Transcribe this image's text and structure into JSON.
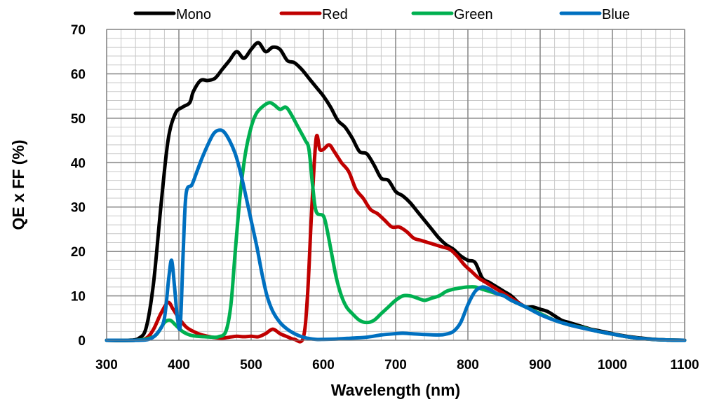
{
  "chart_data": {
    "type": "line",
    "title": "",
    "xlabel": "Wavelength (nm)",
    "ylabel": "QE x FF (%)",
    "xlim": [
      300,
      1100
    ],
    "ylim": [
      0,
      70
    ],
    "xticks": [
      300,
      400,
      500,
      600,
      700,
      800,
      900,
      1000,
      1100
    ],
    "yticks": [
      0,
      10,
      20,
      30,
      40,
      50,
      60,
      70
    ],
    "grid": true,
    "legend_position": "top",
    "series": [
      {
        "name": "Mono",
        "color": "#000000",
        "points": [
          [
            300,
            0
          ],
          [
            330,
            0
          ],
          [
            345,
            0.5
          ],
          [
            355,
            3
          ],
          [
            365,
            13
          ],
          [
            375,
            30
          ],
          [
            385,
            45
          ],
          [
            395,
            51
          ],
          [
            405,
            52.5
          ],
          [
            415,
            53.5
          ],
          [
            420,
            56
          ],
          [
            430,
            58.5
          ],
          [
            440,
            58.5
          ],
          [
            450,
            59
          ],
          [
            460,
            61
          ],
          [
            470,
            63
          ],
          [
            480,
            65
          ],
          [
            490,
            63.5
          ],
          [
            500,
            65.5
          ],
          [
            510,
            67
          ],
          [
            520,
            65
          ],
          [
            530,
            66
          ],
          [
            540,
            65.5
          ],
          [
            550,
            63
          ],
          [
            560,
            62.5
          ],
          [
            570,
            61
          ],
          [
            580,
            59
          ],
          [
            590,
            57
          ],
          [
            600,
            55
          ],
          [
            610,
            52.5
          ],
          [
            620,
            49.5
          ],
          [
            630,
            48
          ],
          [
            640,
            45.5
          ],
          [
            650,
            42.5
          ],
          [
            660,
            42
          ],
          [
            670,
            39.5
          ],
          [
            680,
            36.5
          ],
          [
            690,
            36
          ],
          [
            700,
            33.5
          ],
          [
            710,
            32.5
          ],
          [
            720,
            31
          ],
          [
            730,
            29
          ],
          [
            740,
            27
          ],
          [
            750,
            25
          ],
          [
            760,
            23
          ],
          [
            770,
            21.5
          ],
          [
            780,
            20.5
          ],
          [
            790,
            19
          ],
          [
            800,
            18
          ],
          [
            810,
            17.5
          ],
          [
            820,
            14
          ],
          [
            830,
            13
          ],
          [
            840,
            12
          ],
          [
            850,
            11
          ],
          [
            860,
            10
          ],
          [
            870,
            8.5
          ],
          [
            880,
            7.5
          ],
          [
            890,
            7.5
          ],
          [
            900,
            7
          ],
          [
            910,
            6.5
          ],
          [
            920,
            5.5
          ],
          [
            930,
            4.5
          ],
          [
            940,
            4
          ],
          [
            950,
            3.5
          ],
          [
            960,
            3
          ],
          [
            970,
            2.5
          ],
          [
            980,
            2.2
          ],
          [
            1000,
            1.5
          ],
          [
            1020,
            0.9
          ],
          [
            1040,
            0.5
          ],
          [
            1060,
            0.2
          ],
          [
            1080,
            0.05
          ],
          [
            1100,
            0
          ]
        ]
      },
      {
        "name": "Red",
        "color": "#C00000",
        "points": [
          [
            300,
            0
          ],
          [
            340,
            0
          ],
          [
            355,
            0.5
          ],
          [
            365,
            2.5
          ],
          [
            375,
            6
          ],
          [
            385,
            8.5
          ],
          [
            392,
            7
          ],
          [
            400,
            5
          ],
          [
            410,
            3
          ],
          [
            420,
            2
          ],
          [
            430,
            1.3
          ],
          [
            440,
            0.9
          ],
          [
            450,
            0.6
          ],
          [
            460,
            0.5
          ],
          [
            470,
            0.7
          ],
          [
            480,
            0.9
          ],
          [
            490,
            0.8
          ],
          [
            500,
            0.9
          ],
          [
            510,
            0.8
          ],
          [
            520,
            1.5
          ],
          [
            530,
            2.5
          ],
          [
            540,
            1.5
          ],
          [
            550,
            0.8
          ],
          [
            560,
            0.2
          ],
          [
            572,
            0.5
          ],
          [
            578,
            10
          ],
          [
            584,
            30
          ],
          [
            590,
            45.5
          ],
          [
            595,
            43
          ],
          [
            600,
            43
          ],
          [
            608,
            44
          ],
          [
            615,
            42.5
          ],
          [
            625,
            40
          ],
          [
            635,
            38
          ],
          [
            645,
            34
          ],
          [
            655,
            32
          ],
          [
            665,
            29.5
          ],
          [
            675,
            28.5
          ],
          [
            685,
            27
          ],
          [
            695,
            25.5
          ],
          [
            705,
            25.5
          ],
          [
            715,
            24.5
          ],
          [
            725,
            23
          ],
          [
            735,
            22.5
          ],
          [
            745,
            22
          ],
          [
            755,
            21.5
          ],
          [
            765,
            21
          ],
          [
            775,
            20.5
          ],
          [
            785,
            19
          ],
          [
            795,
            17
          ],
          [
            805,
            15.5
          ],
          [
            815,
            14
          ],
          [
            825,
            13
          ],
          [
            835,
            12
          ],
          [
            845,
            11
          ],
          [
            860,
            9.5
          ],
          [
            880,
            7.5
          ],
          [
            900,
            6
          ],
          [
            920,
            4.5
          ],
          [
            940,
            3.5
          ],
          [
            960,
            2.8
          ],
          [
            980,
            2
          ],
          [
            1000,
            1.4
          ],
          [
            1020,
            0.8
          ],
          [
            1040,
            0.4
          ],
          [
            1060,
            0.15
          ],
          [
            1080,
            0.05
          ],
          [
            1100,
            0
          ]
        ]
      },
      {
        "name": "Green",
        "color": "#00B050",
        "points": [
          [
            300,
            0
          ],
          [
            340,
            0
          ],
          [
            360,
            0.5
          ],
          [
            370,
            1.5
          ],
          [
            380,
            4
          ],
          [
            388,
            4.5
          ],
          [
            395,
            3.5
          ],
          [
            405,
            2
          ],
          [
            415,
            1.2
          ],
          [
            425,
            0.9
          ],
          [
            435,
            0.8
          ],
          [
            445,
            0.7
          ],
          [
            455,
            0.8
          ],
          [
            465,
            2
          ],
          [
            472,
            8
          ],
          [
            478,
            20
          ],
          [
            485,
            33
          ],
          [
            492,
            42
          ],
          [
            500,
            48
          ],
          [
            507,
            51
          ],
          [
            515,
            52.5
          ],
          [
            525,
            53.5
          ],
          [
            532,
            53
          ],
          [
            540,
            52
          ],
          [
            548,
            52.5
          ],
          [
            555,
            51
          ],
          [
            565,
            48
          ],
          [
            575,
            45
          ],
          [
            580,
            43
          ],
          [
            585,
            35
          ],
          [
            590,
            29
          ],
          [
            600,
            28
          ],
          [
            605,
            25
          ],
          [
            612,
            19
          ],
          [
            618,
            14
          ],
          [
            625,
            10
          ],
          [
            632,
            7.5
          ],
          [
            640,
            6
          ],
          [
            650,
            4.5
          ],
          [
            660,
            4
          ],
          [
            670,
            4.5
          ],
          [
            680,
            6
          ],
          [
            690,
            7.5
          ],
          [
            700,
            9
          ],
          [
            710,
            10
          ],
          [
            720,
            10
          ],
          [
            730,
            9.5
          ],
          [
            740,
            9
          ],
          [
            750,
            9.5
          ],
          [
            760,
            10
          ],
          [
            770,
            11
          ],
          [
            780,
            11.5
          ],
          [
            790,
            11.8
          ],
          [
            800,
            12
          ],
          [
            810,
            12
          ],
          [
            820,
            11.5
          ],
          [
            830,
            11
          ],
          [
            840,
            10.5
          ],
          [
            850,
            10
          ],
          [
            860,
            9
          ],
          [
            880,
            7.5
          ],
          [
            900,
            6
          ],
          [
            920,
            4.5
          ],
          [
            940,
            3.5
          ],
          [
            960,
            2.8
          ],
          [
            980,
            2
          ],
          [
            1000,
            1.4
          ],
          [
            1020,
            0.8
          ],
          [
            1040,
            0.4
          ],
          [
            1060,
            0.15
          ],
          [
            1080,
            0.05
          ],
          [
            1100,
            0
          ]
        ]
      },
      {
        "name": "Blue",
        "color": "#0070C0",
        "points": [
          [
            300,
            0
          ],
          [
            340,
            0
          ],
          [
            360,
            0.3
          ],
          [
            372,
            2
          ],
          [
            380,
            5
          ],
          [
            386,
            14
          ],
          [
            390,
            18
          ],
          [
            394,
            12
          ],
          [
            398,
            5
          ],
          [
            402,
            3.5
          ],
          [
            406,
            20
          ],
          [
            410,
            33
          ],
          [
            418,
            35
          ],
          [
            425,
            38
          ],
          [
            432,
            41
          ],
          [
            440,
            44
          ],
          [
            448,
            46.5
          ],
          [
            455,
            47.3
          ],
          [
            462,
            47
          ],
          [
            470,
            45
          ],
          [
            478,
            42
          ],
          [
            485,
            38
          ],
          [
            492,
            33
          ],
          [
            500,
            27
          ],
          [
            508,
            21
          ],
          [
            515,
            15
          ],
          [
            522,
            10
          ],
          [
            530,
            6.5
          ],
          [
            540,
            4
          ],
          [
            550,
            2.5
          ],
          [
            560,
            1.5
          ],
          [
            570,
            0.8
          ],
          [
            580,
            0.4
          ],
          [
            590,
            0.2
          ],
          [
            600,
            0.2
          ],
          [
            620,
            0.3
          ],
          [
            640,
            0.5
          ],
          [
            660,
            0.7
          ],
          [
            680,
            1.2
          ],
          [
            700,
            1.5
          ],
          [
            710,
            1.6
          ],
          [
            720,
            1.5
          ],
          [
            740,
            1.3
          ],
          [
            760,
            1.2
          ],
          [
            770,
            1.4
          ],
          [
            780,
            2
          ],
          [
            790,
            4
          ],
          [
            800,
            8
          ],
          [
            810,
            11
          ],
          [
            820,
            12
          ],
          [
            830,
            11.5
          ],
          [
            840,
            10.5
          ],
          [
            850,
            10
          ],
          [
            860,
            9
          ],
          [
            880,
            7.5
          ],
          [
            900,
            5.8
          ],
          [
            920,
            4.5
          ],
          [
            940,
            3.5
          ],
          [
            960,
            2.7
          ],
          [
            980,
            2
          ],
          [
            1000,
            1.4
          ],
          [
            1020,
            0.8
          ],
          [
            1040,
            0.4
          ],
          [
            1060,
            0.15
          ],
          [
            1080,
            0.05
          ],
          [
            1100,
            0
          ]
        ]
      }
    ]
  }
}
